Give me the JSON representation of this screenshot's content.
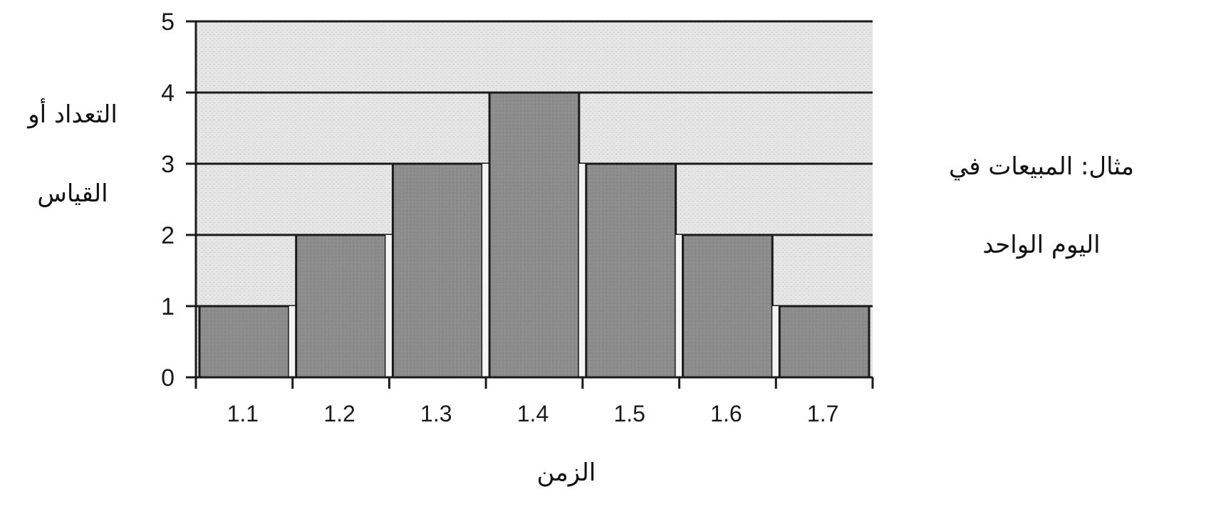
{
  "chart_data": {
    "type": "bar",
    "categories": [
      "1.1",
      "1.2",
      "1.3",
      "1.4",
      "1.5",
      "1.6",
      "1.7"
    ],
    "values": [
      1,
      2,
      3,
      4,
      3,
      2,
      1
    ],
    "xlabel": "الزمن",
    "ylabel_lines": [
      "التعداد أو",
      "القياس"
    ],
    "annotation_lines": [
      "مثال: المبيعات في",
      "اليوم الواحد"
    ],
    "ylim": [
      0,
      5
    ],
    "yticks": [
      0,
      1,
      2,
      3,
      4,
      5
    ],
    "grid": true,
    "colors": {
      "bar_fill": "#8c8c8c",
      "plot_background": "#e4e4e4",
      "axis": "#1a1a1a"
    }
  }
}
